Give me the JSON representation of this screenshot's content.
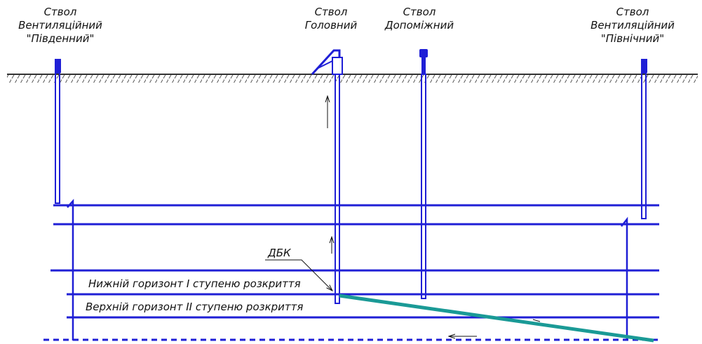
{
  "shafts": {
    "south": {
      "line1": "Ствол",
      "line2": "Вентиляційний",
      "line3": "\"Південний\""
    },
    "main": {
      "line1": "Ствол",
      "line2": "Головний"
    },
    "auxiliary": {
      "line1": "Ствол",
      "line2": "Допоміжний"
    },
    "north": {
      "line1": "Ствол",
      "line2": "Вентиляційний",
      "line3": "\"Північний\""
    }
  },
  "labels": {
    "dbk": "ДБК",
    "lower_horizon": "Нижній горизонт І ступеню розкриття",
    "upper_horizon": "Верхній горизонт ІІ ступеню розкриття"
  },
  "colors": {
    "workings": "#1f1fd6",
    "inclined_drift": "#1a9a96",
    "surface": "#333333",
    "text": "#111111"
  }
}
